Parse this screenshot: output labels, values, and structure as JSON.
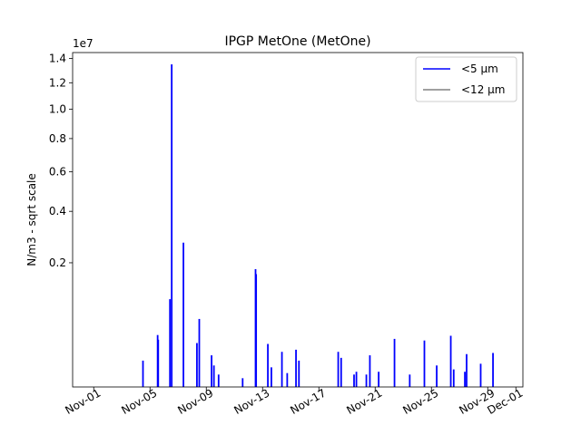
{
  "chart_data": {
    "type": "line",
    "title": "IPGP MetOne (MetOne)",
    "xlabel": "",
    "ylabel": "N/m3 - sqrt scale",
    "y_scale": "sqrt",
    "y_offset_text": "1e7",
    "xlim": [
      "2024-10-30T12:00",
      "2024-12-01T12:00"
    ],
    "ylim": [
      0,
      14500000
    ],
    "x_ticks": [
      {
        "date": "2024-11-01",
        "label": "Nov-01"
      },
      {
        "date": "2024-11-05",
        "label": "Nov-05"
      },
      {
        "date": "2024-11-09",
        "label": "Nov-09"
      },
      {
        "date": "2024-11-13",
        "label": "Nov-13"
      },
      {
        "date": "2024-11-17",
        "label": "Nov-17"
      },
      {
        "date": "2024-11-21",
        "label": "Nov-21"
      },
      {
        "date": "2024-11-25",
        "label": "Nov-25"
      },
      {
        "date": "2024-11-29",
        "label": "Nov-29"
      },
      {
        "date": "2024-12-01",
        "label": "Dec-01"
      }
    ],
    "y_ticks": [
      {
        "value": 2000000,
        "label": "0.2"
      },
      {
        "value": 4000000,
        "label": "0.4"
      },
      {
        "value": 6000000,
        "label": "0.6"
      },
      {
        "value": 8000000,
        "label": "0.8"
      },
      {
        "value": 10000000,
        "label": "1.0"
      },
      {
        "value": 12000000,
        "label": "1.2"
      },
      {
        "value": 14000000,
        "label": "1.4"
      }
    ],
    "legend": {
      "placement": "top-right"
    },
    "series": [
      {
        "name": "<5 µm",
        "color": "#0000ff",
        "spikes": [
          {
            "x": "2024-11-04T12:00",
            "y": 90000
          },
          {
            "x": "2024-11-05T13:00",
            "y": 350000
          },
          {
            "x": "2024-11-05T14:00",
            "y": 290000
          },
          {
            "x": "2024-11-06T10:00",
            "y": 1000000
          },
          {
            "x": "2024-11-06T13:00",
            "y": 13500000
          },
          {
            "x": "2024-11-07T09:00",
            "y": 2700000
          },
          {
            "x": "2024-11-08T08:00",
            "y": 250000
          },
          {
            "x": "2024-11-08T12:00",
            "y": 600000
          },
          {
            "x": "2024-11-09T09:00",
            "y": 130000
          },
          {
            "x": "2024-11-09T13:00",
            "y": 60000
          },
          {
            "x": "2024-11-09T21:00",
            "y": 20000
          },
          {
            "x": "2024-11-11T14:00",
            "y": 10000
          },
          {
            "x": "2024-11-12T12:00",
            "y": 1800000
          },
          {
            "x": "2024-11-12T13:00",
            "y": 1650000
          },
          {
            "x": "2024-11-13T09:00",
            "y": 240000
          },
          {
            "x": "2024-11-13T15:00",
            "y": 50000
          },
          {
            "x": "2024-11-14T09:00",
            "y": 160000
          },
          {
            "x": "2024-11-14T18:00",
            "y": 25000
          },
          {
            "x": "2024-11-15T09:00",
            "y": 180000
          },
          {
            "x": "2024-11-15T14:00",
            "y": 90000
          },
          {
            "x": "2024-11-18T09:00",
            "y": 160000
          },
          {
            "x": "2024-11-18T14:00",
            "y": 110000
          },
          {
            "x": "2024-11-19T12:00",
            "y": 20000
          },
          {
            "x": "2024-11-19T16:00",
            "y": 30000
          },
          {
            "x": "2024-11-20T09:00",
            "y": 20000
          },
          {
            "x": "2024-11-20T15:00",
            "y": 130000
          },
          {
            "x": "2024-11-21T06:00",
            "y": 30000
          },
          {
            "x": "2024-11-22T09:00",
            "y": 300000
          },
          {
            "x": "2024-11-23T11:00",
            "y": 20000
          },
          {
            "x": "2024-11-24T12:00",
            "y": 280000
          },
          {
            "x": "2024-11-25T09:00",
            "y": 60000
          },
          {
            "x": "2024-11-26T09:00",
            "y": 340000
          },
          {
            "x": "2024-11-26T14:00",
            "y": 40000
          },
          {
            "x": "2024-11-27T09:00",
            "y": 30000
          },
          {
            "x": "2024-11-27T12:00",
            "y": 140000
          },
          {
            "x": "2024-11-28T12:00",
            "y": 70000
          },
          {
            "x": "2024-11-29T09:00",
            "y": 150000
          }
        ]
      },
      {
        "name": "<12 µm",
        "color": "#808080",
        "spikes": []
      }
    ]
  }
}
